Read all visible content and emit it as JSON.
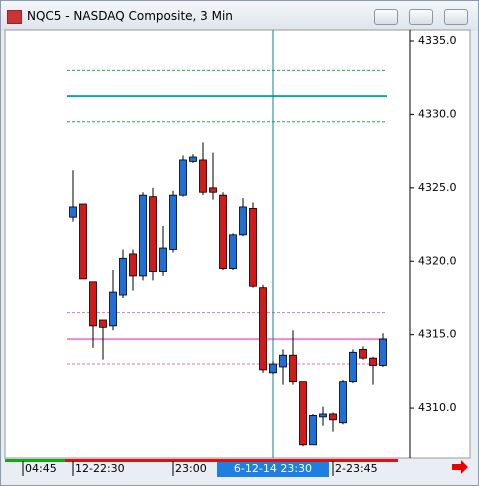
{
  "window_title": "NQC5 - NASDAQ Composite, 3 Min",
  "chart_data": {
    "type": "candlestick",
    "x": [
      6,
      7,
      8,
      9,
      10,
      11,
      12,
      13,
      14,
      15,
      16,
      17,
      18,
      19,
      20,
      21,
      22,
      23,
      24,
      25,
      26,
      27,
      28,
      29,
      30,
      31,
      32,
      33,
      34,
      35,
      36,
      37
    ],
    "open": [
      4323.0,
      4323.9,
      4318.6,
      4316.0,
      4315.6,
      4317.7,
      4320.5,
      4319.0,
      4324.4,
      4319.3,
      4320.8,
      4324.5,
      4326.8,
      4326.9,
      4325.0,
      4324.5,
      4319.5,
      4321.8,
      4323.6,
      4318.2,
      4312.4,
      4312.8,
      4313.6,
      4311.8,
      4307.5,
      4309.4,
      4309.6,
      4309.0,
      4311.8,
      4314.0,
      4313.4,
      4312.9
    ],
    "high": [
      4326.2,
      4323.9,
      4318.6,
      4316.0,
      4319.4,
      4320.8,
      4320.8,
      4324.7,
      4325.0,
      4322.4,
      4324.8,
      4327.2,
      4327.3,
      4328.1,
      4327.4,
      4324.7,
      4321.9,
      4324.3,
      4324.0,
      4318.4,
      4313.2,
      4314.0,
      4315.3,
      4311.8,
      4309.6,
      4310.1,
      4309.7,
      4311.9,
      4314.0,
      4314.2,
      4313.5,
      4315.1
    ],
    "low": [
      4322.7,
      4318.8,
      4314.1,
      4313.3,
      4315.3,
      4317.5,
      4318.0,
      4318.7,
      4318.7,
      4319.0,
      4320.6,
      4324.4,
      4326.7,
      4324.5,
      4324.2,
      4319.4,
      4319.4,
      4321.7,
      4318.2,
      4312.4,
      4312.3,
      4311.6,
      4311.6,
      4307.4,
      4307.5,
      4308.8,
      4308.4,
      4308.9,
      4311.7,
      4313.3,
      4311.6,
      4312.8
    ],
    "close": [
      4323.7,
      4318.8,
      4315.6,
      4315.5,
      4317.9,
      4320.2,
      4319.0,
      4324.5,
      4319.3,
      4320.9,
      4324.5,
      4326.9,
      4327.1,
      4324.7,
      4324.7,
      4319.5,
      4321.8,
      4323.7,
      4318.3,
      4312.6,
      4313.0,
      4313.6,
      4311.8,
      4307.5,
      4309.5,
      4309.6,
      4309.2,
      4311.8,
      4313.8,
      4313.4,
      4312.9,
      4314.7
    ],
    "up_color": "#1f6fd6",
    "down_color": "#d11a1a",
    "levels": [
      {
        "value": 4333.0,
        "color": "#22aa44",
        "dash": true
      },
      {
        "value": 4331.25,
        "color": "#13a3a3",
        "dash": false
      },
      {
        "value": 4329.5,
        "color": "#22aa44",
        "dash": true
      },
      {
        "value": 4316.5,
        "color": "#e070c0",
        "dash": true
      },
      {
        "value": 4314.7,
        "color": "#f08ad0",
        "dash": false
      },
      {
        "value": 4313.0,
        "color": "#e070c0",
        "dash": true
      }
    ],
    "xlim": [
      -0.8,
      39.7
    ],
    "ylim": [
      4306.6,
      4335.75
    ],
    "xticks": [
      {
        "value": 1,
        "label": "04:45"
      },
      {
        "value": 6,
        "label": "12-22:30"
      },
      {
        "value": 16,
        "label": "23:00"
      },
      {
        "value": 32,
        "label": "2-23:45"
      }
    ],
    "cursor": {
      "value": 26,
      "label": "6-12-14 23:30"
    },
    "yticks": [
      {
        "value": 4335,
        "label": "4335.0"
      },
      {
        "value": 4330,
        "label": "4330.0"
      },
      {
        "value": 4325,
        "label": "4325.0"
      },
      {
        "value": 4320,
        "label": "4320.0"
      },
      {
        "value": 4315,
        "label": "4315.0"
      },
      {
        "value": 4310,
        "label": "4310.0"
      }
    ]
  }
}
